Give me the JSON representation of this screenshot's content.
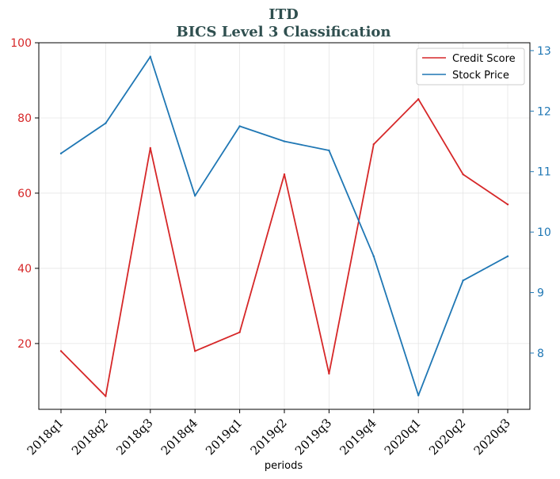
{
  "chart_data": {
    "type": "line",
    "title": "ITD",
    "subtitle": "BICS Level 3 Classification",
    "xlabel": "periods",
    "categories": [
      "2018q1",
      "2018q2",
      "2018q3",
      "2018q4",
      "2019q1",
      "2019q2",
      "2019q3",
      "2019q4",
      "2020q1",
      "2020q2",
      "2020q3"
    ],
    "y_left": {
      "ylim": [
        2.5,
        100
      ],
      "ticks": [
        20,
        40,
        60,
        80,
        100
      ]
    },
    "y_right": {
      "ylim": [
        7.07,
        13.13
      ],
      "ticks": [
        8,
        9,
        10,
        11,
        12,
        13
      ]
    },
    "series": [
      {
        "name": "Credit Score",
        "axis": "left",
        "color": "#d62728",
        "values": [
          18,
          6,
          72,
          18,
          23,
          65,
          12,
          73,
          85,
          65,
          57
        ]
      },
      {
        "name": "Stock Price",
        "axis": "right",
        "color": "#1f77b4",
        "values": [
          11.3,
          11.8,
          12.9,
          10.6,
          11.75,
          11.5,
          11.35,
          9.6,
          7.3,
          9.2,
          9.6
        ]
      }
    ],
    "legend": "top-right",
    "grid": true,
    "colors": {
      "title": "#2f4f4f",
      "left_axis": "#d62728",
      "right_axis": "#1f77b4"
    }
  }
}
